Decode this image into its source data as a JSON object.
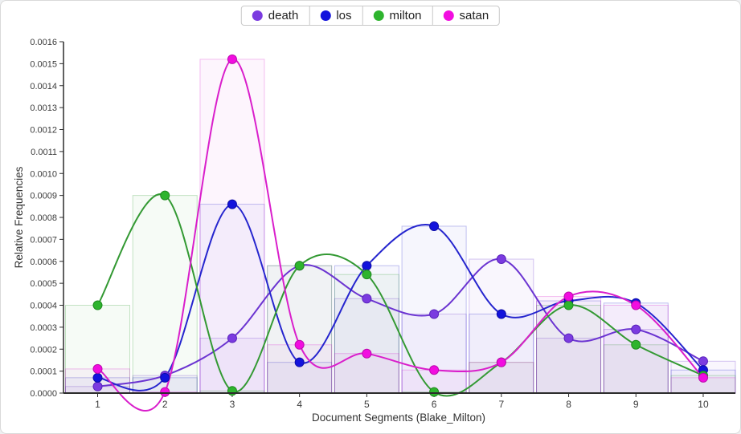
{
  "legend": {
    "items": [
      {
        "label": "death",
        "color": "#7B3BE0"
      },
      {
        "label": "los",
        "color": "#1313DC"
      },
      {
        "label": "milton",
        "color": "#2EB42E"
      },
      {
        "label": "satan",
        "color": "#F20DE0"
      }
    ]
  },
  "chart_data": {
    "type": "line",
    "title": "",
    "xlabel": "Document Segments (Blake_Milton)",
    "ylabel": "Relative Frequencies",
    "x": [
      1,
      2,
      3,
      4,
      5,
      6,
      7,
      8,
      9,
      10
    ],
    "xticks": [
      "1",
      "2",
      "3",
      "4",
      "5",
      "6",
      "7",
      "8",
      "9",
      "10"
    ],
    "yticks": [
      "0.0000",
      "0.0001",
      "0.0002",
      "0.0003",
      "0.0004",
      "0.0005",
      "0.0006",
      "0.0007",
      "0.0008",
      "0.0009",
      "0.0010",
      "0.0011",
      "0.0012",
      "0.0013",
      "0.0014",
      "0.0015",
      "0.0016"
    ],
    "ylim": [
      0,
      0.0016
    ],
    "ytick_step": 0.0001,
    "grid": false,
    "legend_position": "top-center",
    "background_bars": true,
    "curve": "smooth-spline",
    "series": [
      {
        "name": "death",
        "line_color": "#6B34D1",
        "marker_color": "#7B3BE0",
        "marker_border": "#5A24BB",
        "values": [
          3e-05,
          8e-05,
          0.00025,
          0.00058,
          0.00043,
          0.00036,
          0.00061,
          0.00025,
          0.00029,
          0.000145
        ]
      },
      {
        "name": "los",
        "line_color": "#2525CE",
        "marker_color": "#1313DC",
        "marker_border": "#0D0DA8",
        "values": [
          7e-05,
          7e-05,
          0.00086,
          0.00014,
          0.00058,
          0.00076,
          0.00036,
          0.00042,
          0.00041,
          0.000105
        ]
      },
      {
        "name": "milton",
        "line_color": "#339933",
        "marker_color": "#2EB42E",
        "marker_border": "#1F8A1F",
        "values": [
          0.0004,
          0.0009,
          1e-05,
          0.00058,
          0.00054,
          5e-06,
          0.00014,
          0.0004,
          0.00022,
          8e-05
        ]
      },
      {
        "name": "satan",
        "line_color": "#D91ECB",
        "marker_color": "#F20DE0",
        "marker_border": "#BB0AAD",
        "values": [
          0.00011,
          5e-06,
          0.00152,
          0.00022,
          0.00018,
          0.000105,
          0.00014,
          0.00044,
          0.0004,
          7e-05
        ]
      }
    ],
    "axis_color": "#2b2b2b",
    "tick_label_color": "#3b3b3b",
    "axis_title_color": "#333333"
  }
}
